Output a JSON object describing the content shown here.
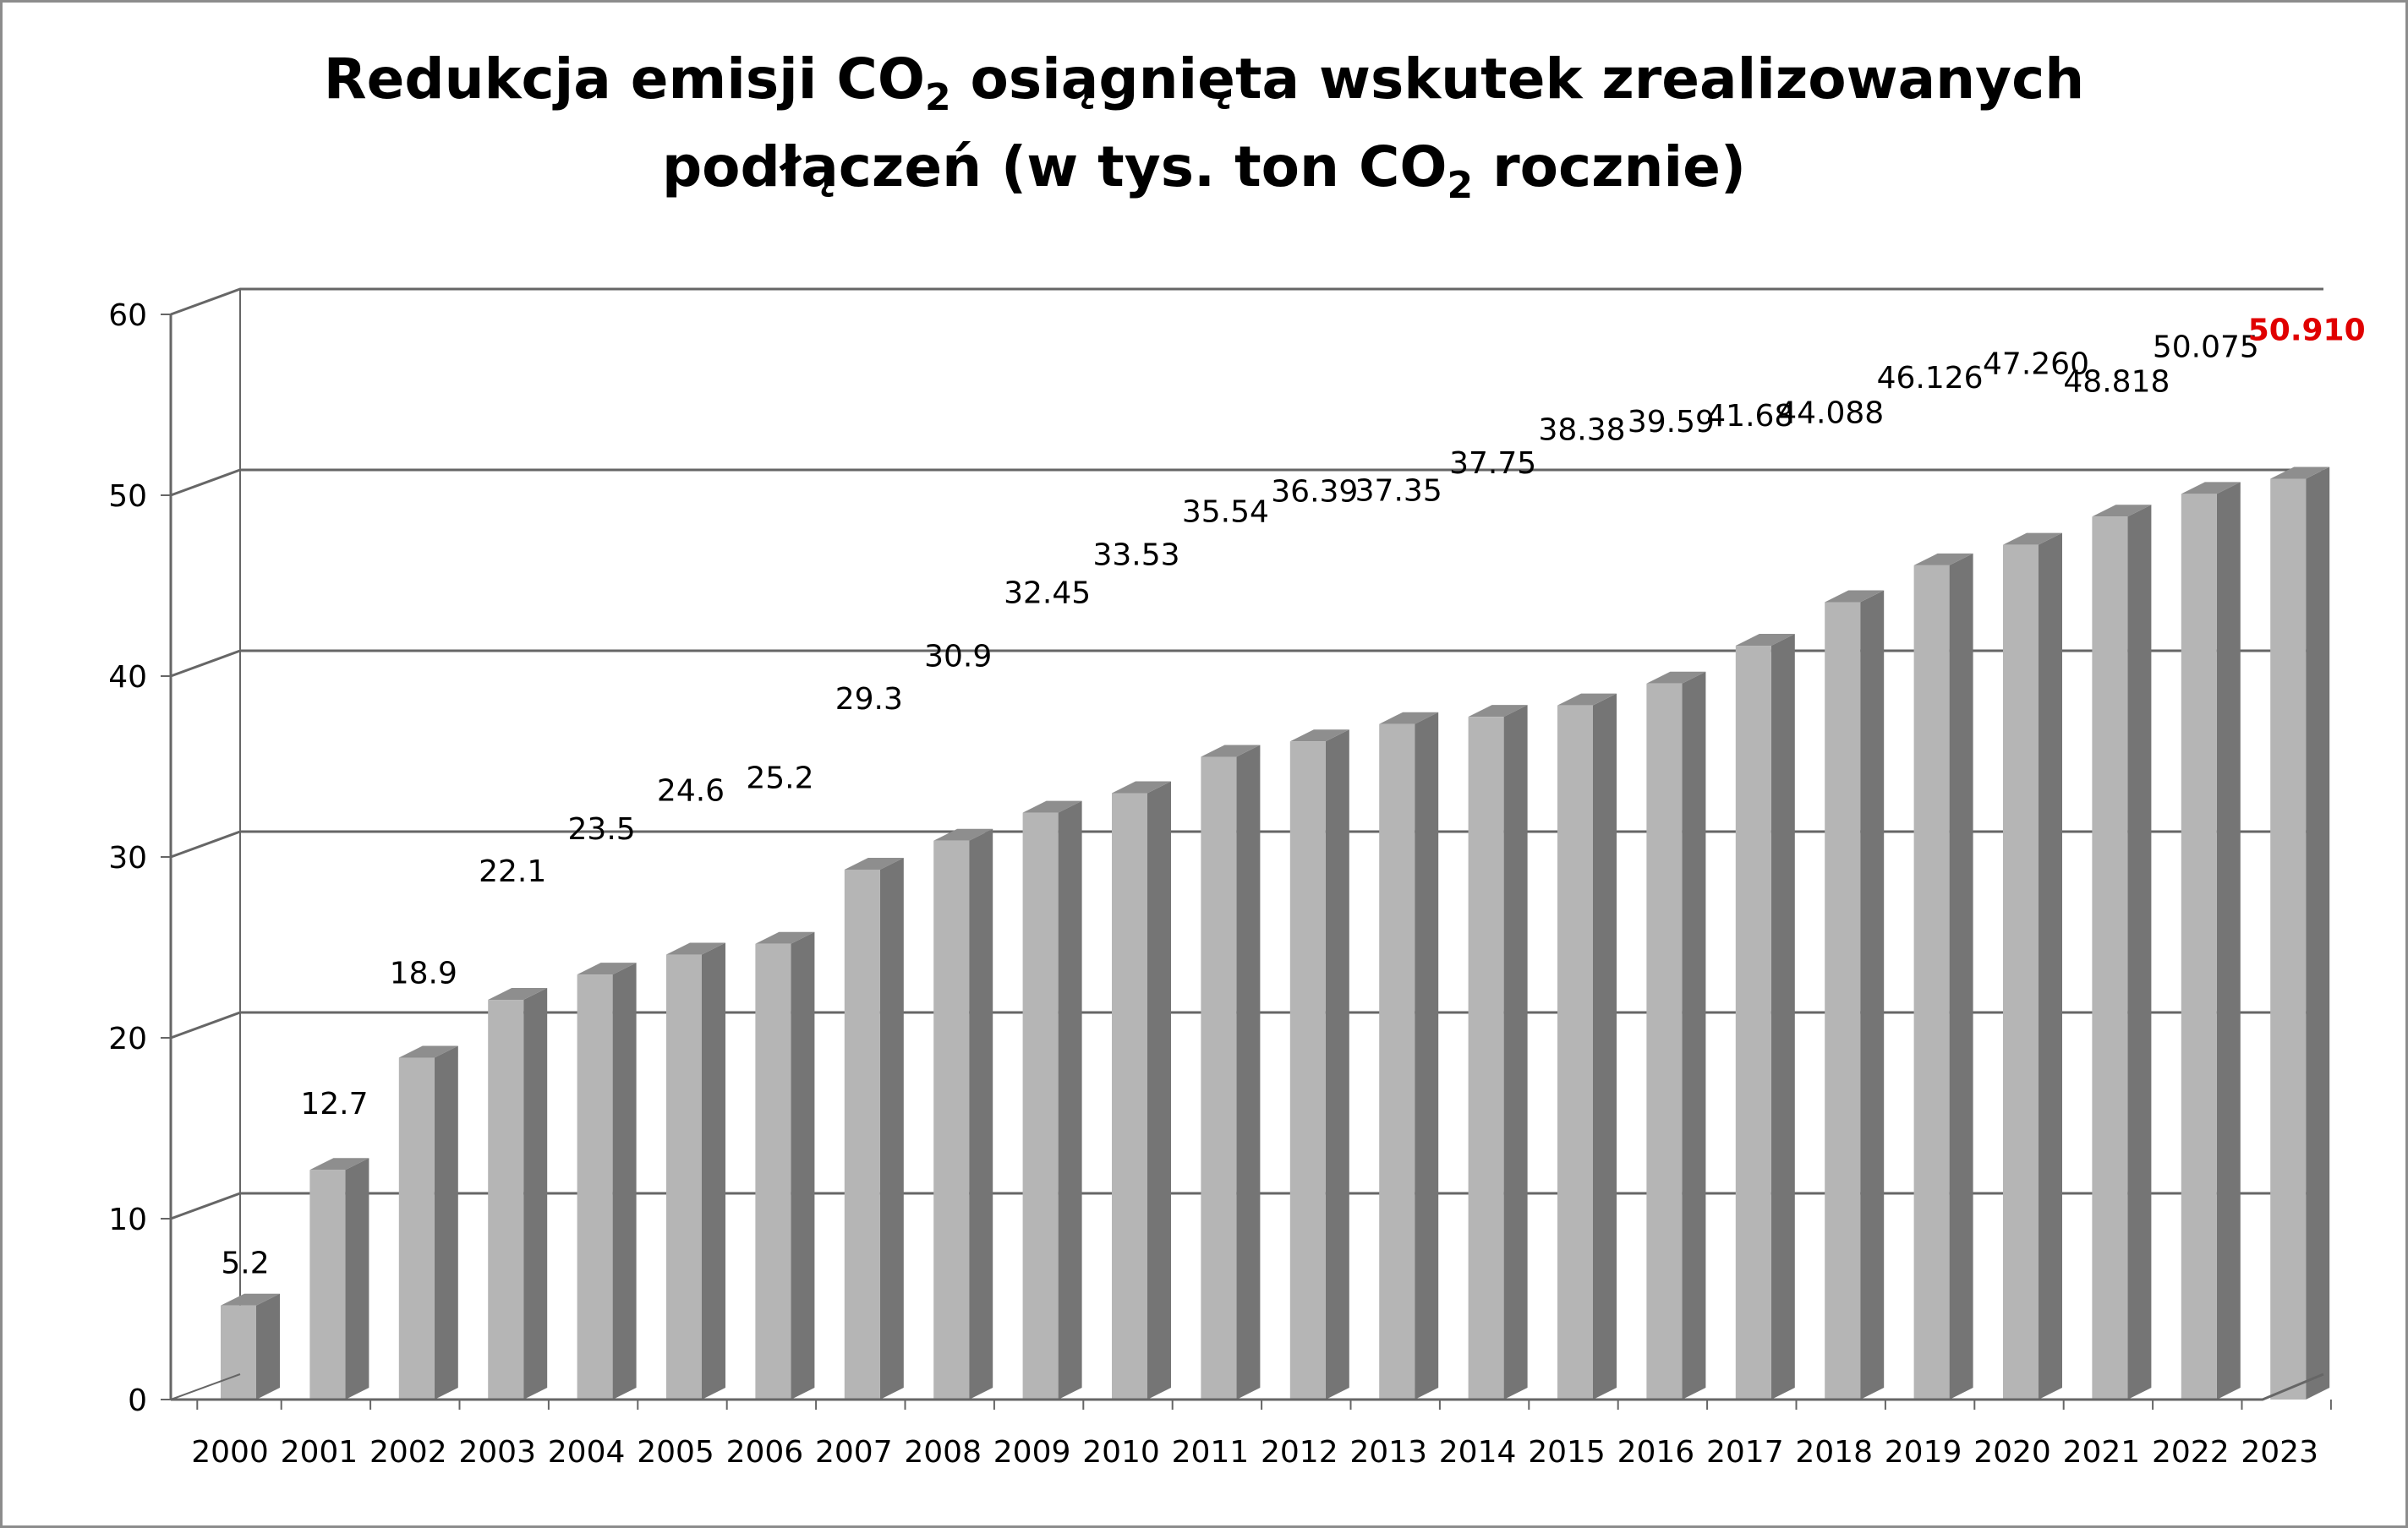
{
  "title": {
    "line1_a": "Redukcja emisji CO",
    "line1_sub": "2",
    "line1_b": " osiągnięta wskutek zrealizowanych",
    "line2_a": "podłączeń (w tys. ton CO",
    "line2_sub": "2",
    "line2_b": " rocznie)"
  },
  "chart_data": {
    "type": "bar",
    "style": "3d-column",
    "categories": [
      "2000",
      "2001",
      "2002",
      "2003",
      "2004",
      "2005",
      "2006",
      "2007",
      "2008",
      "2009",
      "2010",
      "2011",
      "2012",
      "2013",
      "2014",
      "2015",
      "2016",
      "2017",
      "2018",
      "2019",
      "2020",
      "2021",
      "2022",
      "2023"
    ],
    "values": [
      5.2,
      12.7,
      18.9,
      22.1,
      23.5,
      24.6,
      25.2,
      29.3,
      30.9,
      32.45,
      33.53,
      35.54,
      36.39,
      37.35,
      37.75,
      38.38,
      39.59,
      41.68,
      44.088,
      46.126,
      47.26,
      48.818,
      50.075,
      50.91
    ],
    "data_labels": [
      "5.2",
      "12.7",
      "18.9",
      "22.1",
      "23.5",
      "24.6",
      "25.2",
      "29.3",
      "30.9",
      "32.45",
      "33.53",
      "35.54",
      "36.39",
      "37.35",
      "37.75",
      "38.38",
      "39.59",
      "41.68",
      "44.088",
      "46.126",
      "47.260",
      "48.818",
      "50.075",
      "50.910"
    ],
    "highlight_index": 23,
    "ylim": [
      0,
      60
    ],
    "yticks": [
      0,
      10,
      20,
      30,
      40,
      50,
      60
    ],
    "xlabel": "",
    "ylabel": "",
    "grid": true,
    "legend": "none"
  },
  "colors": {
    "bar_front": "#b5b5b5",
    "bar_side": "#757575",
    "bar_top": "#8e8e8e",
    "grid": "#666666",
    "highlight_label": "#e00000",
    "frame": "#8c8c8c"
  }
}
